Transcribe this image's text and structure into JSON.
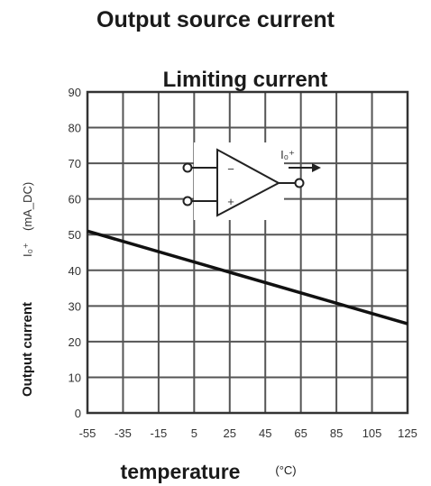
{
  "page_title": "Output source current",
  "chart_data": {
    "type": "line",
    "title": "Limiting current",
    "xlabel": "temperature",
    "xunit": "(°C)",
    "ylabel": "Output current",
    "yunit_symbol": "I₀⁺",
    "yunit": "(mA_DC)",
    "x_ticks": [
      "-55",
      "-35",
      "-15",
      "5",
      "25",
      "45",
      "65",
      "85",
      "105",
      "125"
    ],
    "y_ticks": [
      "0",
      "10",
      "20",
      "30",
      "40",
      "50",
      "60",
      "70",
      "80",
      "90"
    ],
    "xlim": [
      -55,
      125
    ],
    "ylim": [
      0,
      90
    ],
    "grid": true,
    "series": [
      {
        "x": [
          -55,
          125
        ],
        "y": [
          51,
          25
        ],
        "color": "#111111"
      }
    ],
    "inset": {
      "minus_label": "−",
      "plus_label": "+",
      "output_label": "I₀⁺"
    }
  }
}
